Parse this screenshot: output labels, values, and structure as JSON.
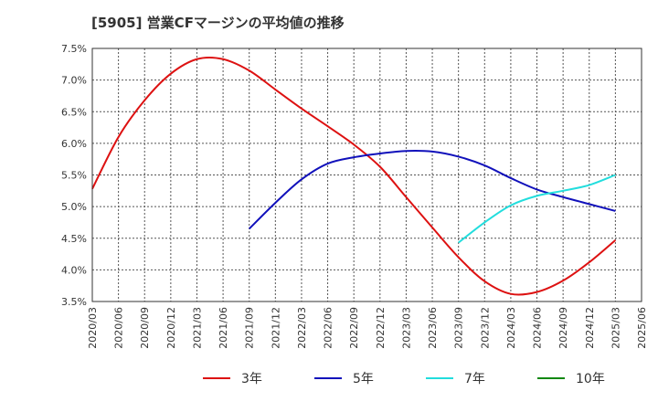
{
  "chart_data": {
    "type": "line",
    "title": "[5905]  営業CFマージンの平均値の推移",
    "xlabel": "",
    "ylabel": "",
    "ylim": [
      3.5,
      7.5
    ],
    "yticks": [
      "3.5%",
      "4.0%",
      "4.5%",
      "5.0%",
      "5.5%",
      "6.0%",
      "6.5%",
      "7.0%",
      "7.5%"
    ],
    "categories": [
      "2020/03",
      "2020/06",
      "2020/09",
      "2020/12",
      "2021/03",
      "2021/06",
      "2021/09",
      "2021/12",
      "2022/03",
      "2022/06",
      "2022/09",
      "2022/12",
      "2023/03",
      "2023/06",
      "2023/09",
      "2023/12",
      "2024/03",
      "2024/06",
      "2024/09",
      "2024/12",
      "2025/03",
      "2025/06"
    ],
    "grid": true,
    "legend_position": "bottom",
    "series": [
      {
        "name": "3年",
        "color": "#dd1111",
        "values": [
          5.28,
          6.1,
          6.68,
          7.1,
          7.33,
          7.33,
          7.15,
          6.85,
          6.55,
          6.27,
          5.98,
          5.63,
          5.15,
          4.67,
          4.2,
          3.82,
          3.62,
          3.65,
          3.83,
          4.12,
          4.47,
          null
        ]
      },
      {
        "name": "5年",
        "color": "#1111bb",
        "values": [
          null,
          null,
          null,
          null,
          null,
          null,
          4.65,
          5.06,
          5.43,
          5.68,
          5.78,
          5.84,
          5.88,
          5.87,
          5.79,
          5.65,
          5.45,
          5.27,
          5.15,
          5.04,
          4.93,
          null
        ]
      },
      {
        "name": "7年",
        "color": "#22dddd",
        "values": [
          null,
          null,
          null,
          null,
          null,
          null,
          null,
          null,
          null,
          null,
          null,
          null,
          null,
          null,
          4.43,
          4.75,
          5.02,
          5.17,
          5.25,
          5.34,
          5.5,
          null
        ]
      },
      {
        "name": "10年",
        "color": "#118811",
        "values": [
          null,
          null,
          null,
          null,
          null,
          null,
          null,
          null,
          null,
          null,
          null,
          null,
          null,
          null,
          null,
          null,
          null,
          null,
          null,
          null,
          null,
          null
        ]
      }
    ]
  }
}
